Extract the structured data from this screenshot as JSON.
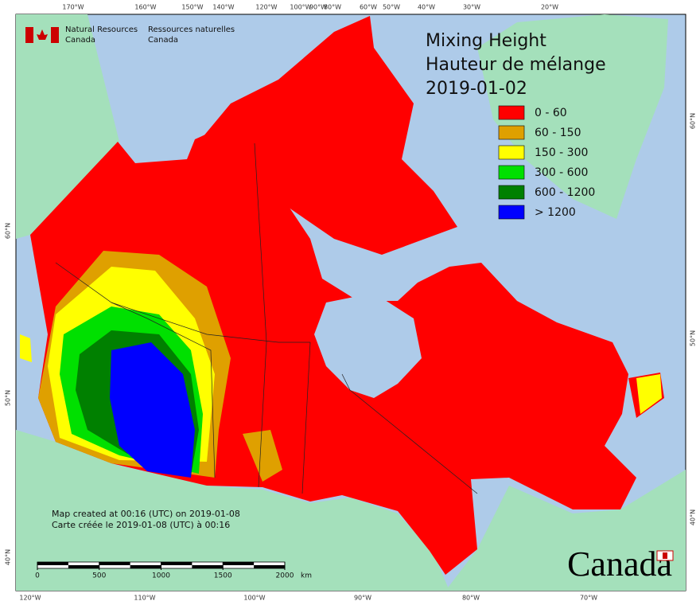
{
  "header": {
    "agency_en": [
      "Natural Resources",
      "Canada"
    ],
    "agency_fr": [
      "Ressources naturelles",
      "Canada"
    ]
  },
  "title": [
    "Mixing Height",
    "Hauteur de mélange",
    "2019-01-02"
  ],
  "legend": [
    {
      "label": "0 - 60",
      "color": "#ff0000"
    },
    {
      "label": "60 - 150",
      "color": "#dfa000"
    },
    {
      "label": "150 - 300",
      "color": "#ffff00"
    },
    {
      "label": "300 - 600",
      "color": "#00e000"
    },
    {
      "label": "600 - 1200",
      "color": "#008000"
    },
    {
      "label": "> 1200",
      "color": "#0000ff"
    }
  ],
  "graticule": {
    "top": [
      "170°W",
      "160°W",
      "150°W",
      "140°W",
      "120°W",
      "100°W",
      "90°W",
      "80°W",
      "60°W",
      "50°W",
      "40°W",
      "30°W",
      "20°W"
    ],
    "bottom": [
      "120°W",
      "110°W",
      "100°W",
      "90°W",
      "80°W",
      "70°W"
    ],
    "left": [
      "60°N",
      "50°N",
      "40°N"
    ],
    "right": [
      "60°N",
      "50°N",
      "40°N"
    ]
  },
  "notes": [
    "Map created at 00:16 (UTC) on 2019-01-08",
    "Carte créée le 2019-01-08 (UTC) à 00:16"
  ],
  "scale": {
    "ticks": [
      0,
      500,
      1000,
      1500,
      2000
    ],
    "unit": "km"
  },
  "wordmark": "Canada"
}
